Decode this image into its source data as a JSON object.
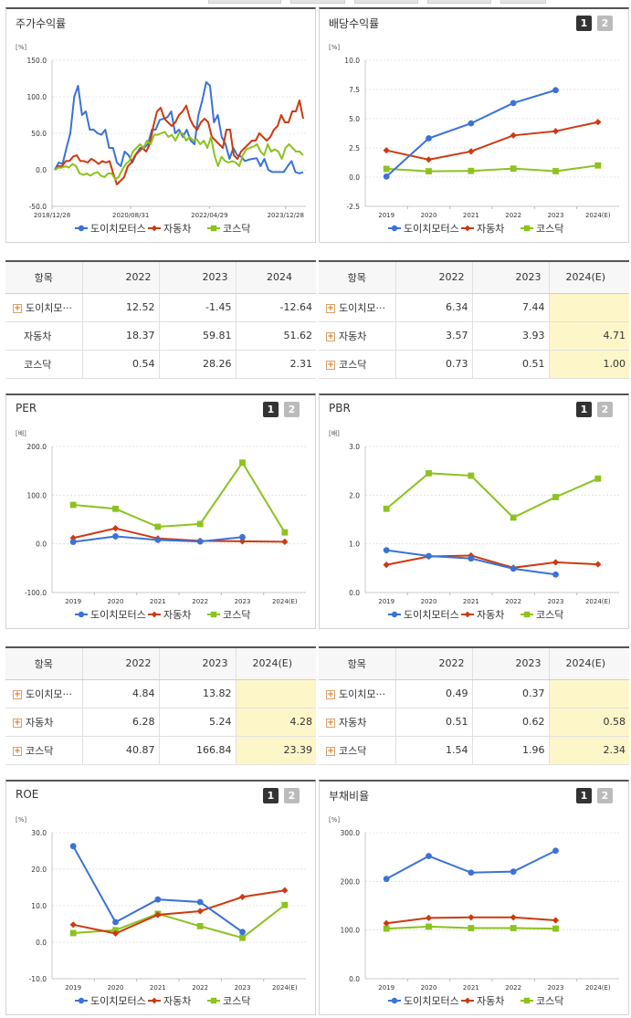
{
  "colors": {
    "doichi": "#3a72d6",
    "auto": "#cc3a10",
    "kosdaq": "#8dc21f",
    "highlight": "#fdf6c8"
  },
  "legend": [
    "도이치모터스",
    "자동차",
    "코스닥"
  ],
  "panels": {
    "stock": {
      "title": "주가수익률",
      "unit": "[%]",
      "y_ticks": [
        "150.0",
        "100.0",
        "50.0",
        "0.0",
        "-50.0"
      ],
      "x_ticks": [
        "2018/12/28",
        "2020/08/31",
        "2022/04/29",
        "2023/12/28"
      ]
    },
    "dividend": {
      "title": "배당수익률",
      "tab1": "1",
      "tab2": "2",
      "unit": "[%]",
      "y_ticks": [
        "10.0",
        "7.5",
        "5.0",
        "2.5",
        "0.0",
        "-2.5"
      ],
      "x_ticks": [
        "2019",
        "2020",
        "2021",
        "2022",
        "2023",
        "2024(E)"
      ]
    },
    "per": {
      "title": "PER",
      "tab1": "1",
      "tab2": "2",
      "unit": "[배]",
      "y_ticks": [
        "200.0",
        "100.0",
        "0.0",
        "-100.0"
      ],
      "x_ticks": [
        "2019",
        "2020",
        "2021",
        "2022",
        "2023",
        "2024(E)"
      ]
    },
    "pbr": {
      "title": "PBR",
      "tab1": "1",
      "tab2": "2",
      "unit": "[배]",
      "y_ticks": [
        "3.0",
        "2.0",
        "1.0",
        "0.0"
      ],
      "x_ticks": [
        "2019",
        "2020",
        "2021",
        "2022",
        "2023",
        "2024(E)"
      ]
    },
    "roe": {
      "title": "ROE",
      "tab1": "1",
      "tab2": "2",
      "unit": "[%]",
      "y_ticks": [
        "30.0",
        "20.0",
        "10.0",
        "0.0",
        "-10.0"
      ],
      "x_ticks": [
        "2019",
        "2020",
        "2021",
        "2022",
        "2023",
        "2024(E)"
      ]
    },
    "debt": {
      "title": "부채비율",
      "tab1": "1",
      "tab2": "2",
      "unit": "[%]",
      "y_ticks": [
        "300.0",
        "200.0",
        "100.0",
        "0.0"
      ],
      "x_ticks": [
        "2019",
        "2020",
        "2021",
        "2022",
        "2023",
        "2024(E)"
      ]
    }
  },
  "tables": {
    "stock": {
      "headers": [
        "항목",
        "2022",
        "2023",
        "2024"
      ],
      "rows": [
        {
          "name": "도이치모···",
          "plus": true,
          "values": [
            "12.52",
            "-1.45",
            "-12.64"
          ]
        },
        {
          "name": "자동차",
          "plus": false,
          "values": [
            "18.37",
            "59.81",
            "51.62"
          ]
        },
        {
          "name": "코스닥",
          "plus": false,
          "values": [
            "0.54",
            "28.26",
            "2.31"
          ]
        }
      ]
    },
    "dividend": {
      "headers": [
        "항목",
        "2022",
        "2023",
        "2024(E)"
      ],
      "rows": [
        {
          "name": "도이치모···",
          "plus": true,
          "values": [
            "6.34",
            "7.44",
            ""
          ]
        },
        {
          "name": "자동차",
          "plus": true,
          "values": [
            "3.57",
            "3.93",
            "4.71"
          ]
        },
        {
          "name": "코스닥",
          "plus": true,
          "values": [
            "0.73",
            "0.51",
            "1.00"
          ]
        }
      ]
    },
    "per": {
      "headers": [
        "항목",
        "2022",
        "2023",
        "2024(E)"
      ],
      "rows": [
        {
          "name": "도이치모···",
          "plus": true,
          "values": [
            "4.84",
            "13.82",
            ""
          ]
        },
        {
          "name": "자동차",
          "plus": true,
          "values": [
            "6.28",
            "5.24",
            "4.28"
          ]
        },
        {
          "name": "코스닥",
          "plus": true,
          "values": [
            "40.87",
            "166.84",
            "23.39"
          ]
        }
      ]
    },
    "pbr": {
      "headers": [
        "항목",
        "2022",
        "2023",
        "2024(E)"
      ],
      "rows": [
        {
          "name": "도이치모···",
          "plus": true,
          "values": [
            "0.49",
            "0.37",
            ""
          ]
        },
        {
          "name": "자동차",
          "plus": true,
          "values": [
            "0.51",
            "0.62",
            "0.58"
          ]
        },
        {
          "name": "코스닥",
          "plus": true,
          "values": [
            "1.54",
            "1.96",
            "2.34"
          ]
        }
      ]
    }
  },
  "chart_data": [
    {
      "id": "stock",
      "type": "line",
      "ylim": [
        -50,
        150
      ],
      "x_range": [
        "2018-12-28",
        "2024-06"
      ],
      "series": [
        {
          "name": "도이치모터스",
          "values": [
            0,
            10,
            8,
            30,
            50,
            100,
            115,
            75,
            80,
            55,
            55,
            50,
            48,
            55,
            30,
            30,
            10,
            5,
            25,
            20,
            10,
            22,
            30,
            30,
            35,
            55,
            55,
            68,
            70,
            72,
            80,
            50,
            55,
            45,
            55,
            40,
            35,
            75,
            95,
            120,
            115,
            65,
            75,
            45,
            35,
            15,
            30,
            20,
            18,
            12,
            14,
            15,
            16,
            5,
            15,
            0,
            -3,
            -3,
            -3,
            -3,
            5,
            12,
            -3,
            -5,
            -3
          ]
        },
        {
          "name": "자동차",
          "values": [
            0,
            5,
            5,
            12,
            12,
            18,
            20,
            12,
            12,
            10,
            15,
            12,
            8,
            12,
            10,
            12,
            -5,
            -20,
            -15,
            -10,
            5,
            10,
            20,
            25,
            30,
            25,
            35,
            60,
            80,
            85,
            70,
            65,
            60,
            65,
            75,
            80,
            88,
            70,
            60,
            55,
            65,
            70,
            65,
            45,
            40,
            35,
            30,
            55,
            55,
            20,
            15,
            25,
            30,
            35,
            40,
            40,
            50,
            45,
            40,
            45,
            55,
            60,
            75,
            65,
            65,
            80,
            80,
            95,
            70
          ]
        },
        {
          "name": "코스닥",
          "values": [
            0,
            3,
            3,
            5,
            3,
            8,
            5,
            -5,
            -7,
            -5,
            -8,
            -5,
            -3,
            -8,
            -10,
            -5,
            -5,
            -13,
            -10,
            0,
            8,
            12,
            25,
            30,
            35,
            30,
            40,
            35,
            48,
            48,
            50,
            52,
            45,
            48,
            40,
            50,
            50,
            40,
            45,
            40,
            42,
            35,
            40,
            30,
            45,
            20,
            5,
            18,
            12,
            10,
            12,
            10,
            5,
            20,
            28,
            30,
            32,
            35,
            25,
            20,
            35,
            25,
            28,
            25,
            15,
            30,
            35,
            30,
            25,
            25,
            20
          ]
        }
      ]
    },
    {
      "id": "dividend",
      "type": "line",
      "ylim": [
        -2.5,
        10
      ],
      "categories": [
        "2019",
        "2020",
        "2021",
        "2022",
        "2023",
        "2024(E)"
      ],
      "series": [
        {
          "name": "도이치모터스",
          "values": [
            0.05,
            3.32,
            4.6,
            6.34,
            7.44,
            null
          ]
        },
        {
          "name": "자동차",
          "values": [
            2.29,
            1.5,
            2.2,
            3.57,
            3.93,
            4.71
          ]
        },
        {
          "name": "코스닥",
          "values": [
            0.71,
            0.5,
            0.53,
            0.73,
            0.51,
            1.0
          ]
        }
      ]
    },
    {
      "id": "per",
      "type": "line",
      "ylim": [
        -100,
        200
      ],
      "categories": [
        "2019",
        "2020",
        "2021",
        "2022",
        "2023",
        "2024(E)"
      ],
      "series": [
        {
          "name": "도이치모터스",
          "values": [
            4.0,
            15.4,
            8.0,
            4.84,
            13.82,
            null
          ]
        },
        {
          "name": "자동차",
          "values": [
            12.0,
            32.0,
            11.0,
            6.28,
            5.24,
            4.28
          ]
        },
        {
          "name": "코스닥",
          "values": [
            80.0,
            72.0,
            35.0,
            40.87,
            166.84,
            23.39
          ]
        }
      ]
    },
    {
      "id": "pbr",
      "type": "line",
      "ylim": [
        0,
        3
      ],
      "categories": [
        "2019",
        "2020",
        "2021",
        "2022",
        "2023",
        "2024(E)"
      ],
      "series": [
        {
          "name": "도이치모터스",
          "values": [
            0.87,
            0.75,
            0.7,
            0.49,
            0.37,
            null
          ]
        },
        {
          "name": "자동차",
          "values": [
            0.57,
            0.74,
            0.76,
            0.51,
            0.62,
            0.58
          ]
        },
        {
          "name": "코스닥",
          "values": [
            1.72,
            2.45,
            2.4,
            1.54,
            1.96,
            2.34
          ]
        }
      ]
    },
    {
      "id": "roe",
      "type": "line",
      "ylim": [
        -10,
        30
      ],
      "categories": [
        "2019",
        "2020",
        "2021",
        "2022",
        "2023",
        "2024(E)"
      ],
      "series": [
        {
          "name": "도이치모터스",
          "values": [
            26.3,
            5.5,
            11.7,
            11.0,
            2.8,
            null
          ]
        },
        {
          "name": "자동차",
          "values": [
            4.8,
            2.4,
            7.5,
            8.5,
            12.4,
            14.2
          ]
        },
        {
          "name": "코스닥",
          "values": [
            2.5,
            3.3,
            7.8,
            4.4,
            1.2,
            10.2
          ]
        }
      ]
    },
    {
      "id": "debt",
      "type": "line",
      "ylim": [
        0,
        300
      ],
      "categories": [
        "2019",
        "2020",
        "2021",
        "2022",
        "2023",
        "2024(E)"
      ],
      "series": [
        {
          "name": "도이치모터스",
          "values": [
            205,
            252,
            218,
            220,
            263,
            null
          ]
        },
        {
          "name": "자동차",
          "values": [
            114,
            125,
            126,
            126,
            120,
            null
          ]
        },
        {
          "name": "코스닥",
          "values": [
            103,
            107,
            104,
            104,
            103,
            null
          ]
        }
      ]
    }
  ]
}
